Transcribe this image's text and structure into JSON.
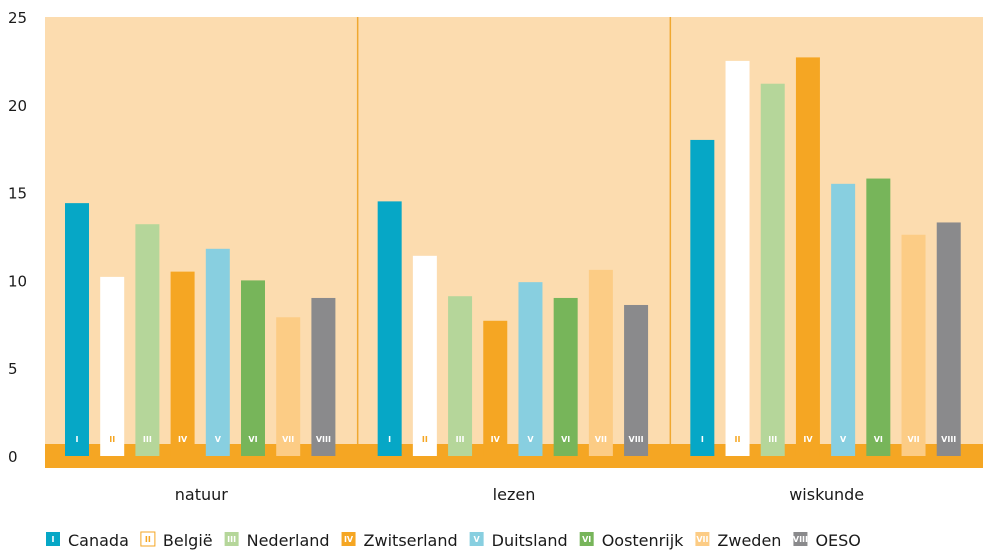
{
  "chart_data": {
    "type": "bar",
    "categories": [
      "natuur",
      "lezen",
      "wiskunde"
    ],
    "ylim": [
      0,
      25
    ],
    "yticks": [
      0,
      5,
      10,
      15,
      20,
      25
    ],
    "grid": false,
    "legend_position": "bottom",
    "series": [
      {
        "name": "Canada",
        "numeral": "I",
        "color": "#06a7c6",
        "values": [
          14.4,
          14.5,
          18.0
        ]
      },
      {
        "name": "België",
        "numeral": "II",
        "color": "#ffffff",
        "values": [
          10.2,
          11.4,
          22.5
        ]
      },
      {
        "name": "Nederland",
        "numeral": "III",
        "color": "#b5d69a",
        "values": [
          13.2,
          9.1,
          21.2
        ]
      },
      {
        "name": "Zwitserland",
        "numeral": "IV",
        "color": "#f5a623",
        "values": [
          10.5,
          7.7,
          22.7
        ]
      },
      {
        "name": "Duitsland",
        "numeral": "V",
        "color": "#88cfe0",
        "values": [
          11.8,
          9.9,
          15.5
        ]
      },
      {
        "name": "Oostenrijk",
        "numeral": "VI",
        "color": "#77b55a",
        "values": [
          10.0,
          9.0,
          15.8
        ]
      },
      {
        "name": "Zweden",
        "numeral": "VII",
        "color": "#fccc85",
        "values": [
          7.9,
          10.6,
          12.6
        ]
      },
      {
        "name": "OESO",
        "numeral": "VIII",
        "color": "#8a8a8c",
        "values": [
          9.0,
          8.6,
          13.3
        ]
      }
    ],
    "colors": {
      "plot_background": "#fcdcaf",
      "baseline_band": "#f5a623",
      "divider": "#f0a830"
    }
  }
}
